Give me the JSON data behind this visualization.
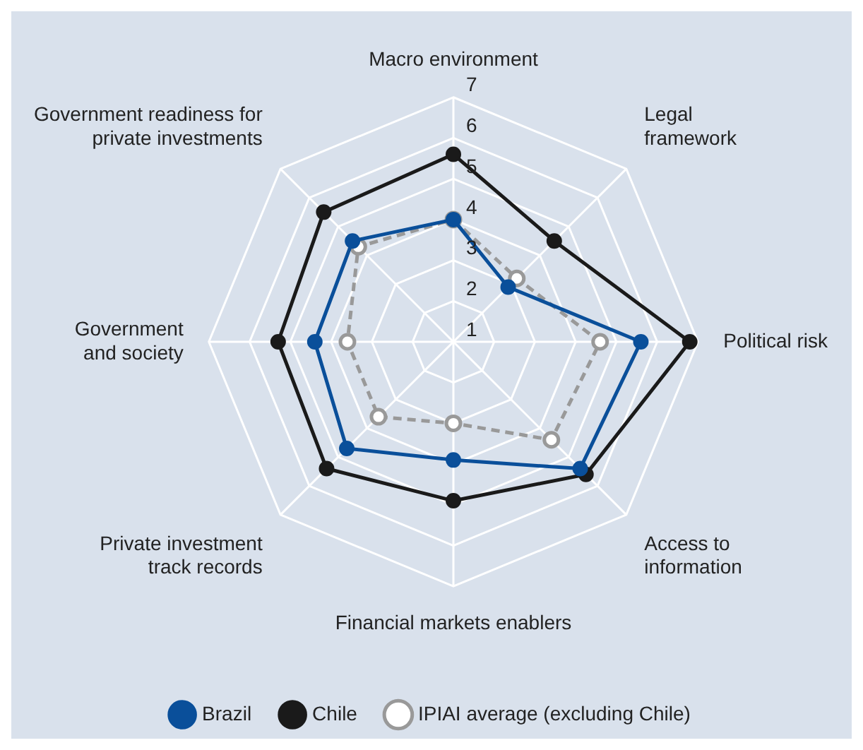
{
  "chart_data": {
    "type": "radar",
    "categories": [
      "Macro environment",
      "Legal framework",
      "Political risk",
      "Access to information",
      "Financial markets enablers",
      "Private investment track records",
      "Government and society",
      "Government readiness for private investments"
    ],
    "series": [
      {
        "name": "Brazil",
        "color": "#0a4f9a",
        "values": [
          4.0,
          2.9,
          5.6,
          5.4,
          3.9,
          4.7,
          4.4,
          4.5
        ]
      },
      {
        "name": "Chile",
        "color": "#1a1a1a",
        "values": [
          5.6,
          4.5,
          6.8,
          5.6,
          4.9,
          5.4,
          5.3,
          5.5
        ]
      },
      {
        "name": "IPIAI average (excluding Chile)",
        "color": "#999999",
        "line_style": "dashed",
        "values": [
          4.0,
          3.2,
          4.6,
          4.4,
          3.0,
          3.6,
          3.6,
          4.3
        ]
      }
    ],
    "ylim": [
      1,
      7
    ],
    "yticks": [
      1,
      2,
      3,
      4,
      5,
      6,
      7
    ],
    "grid": true,
    "legend": "bottom",
    "marker": "circle"
  }
}
